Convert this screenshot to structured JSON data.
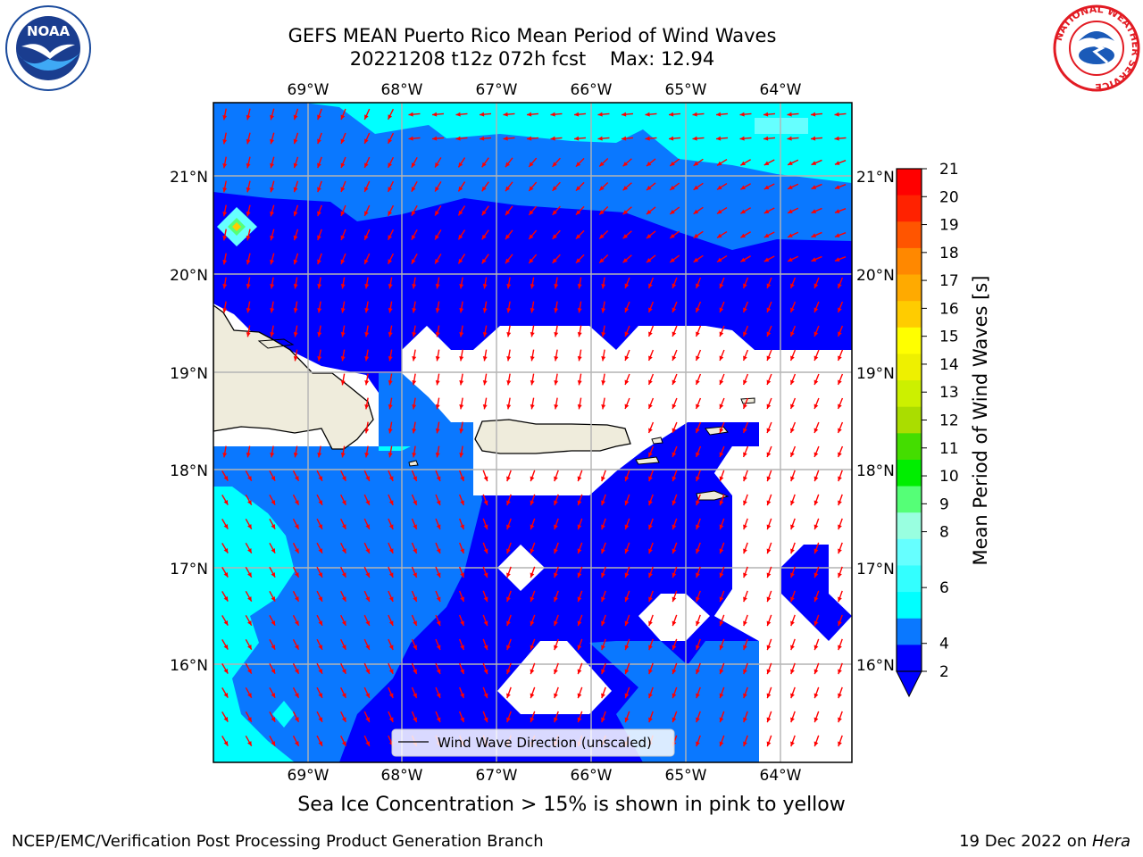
{
  "title": {
    "line1": "GEFS MEAN Puerto Rico Mean Period of Wind Waves",
    "line2": "20221208 t12z 072h fcst    Max: 12.94"
  },
  "map": {
    "lon_labels": [
      "69°W",
      "68°W",
      "67°W",
      "66°W",
      "65°W",
      "64°W"
    ],
    "lat_labels": [
      "21°N",
      "20°N",
      "19°N",
      "18°N",
      "17°N",
      "16°N"
    ],
    "legend_label": "Wind Wave Direction (unscaled)",
    "arrow_color": "#ff0000",
    "land_color": "#efecdc",
    "grid_color": "#b4b4b4"
  },
  "colorbar": {
    "label": "Mean Period of Wind Waves [s]",
    "ticks": [
      "2",
      "4",
      "6",
      "8",
      "9",
      "10",
      "11",
      "12",
      "13",
      "14",
      "15",
      "16",
      "17",
      "18",
      "19",
      "20",
      "21"
    ],
    "colors": [
      "#0000ff",
      "#0a78ff",
      "#00ffff",
      "#33ffff",
      "#66ffff",
      "#99ffe0",
      "#55ff77",
      "#00ee00",
      "#44dd00",
      "#aadd00",
      "#ccf000",
      "#eef000",
      "#ffff00",
      "#ffcc00",
      "#ffaa00",
      "#ff8800",
      "#ff5500",
      "#ff2200",
      "#ff0000"
    ],
    "extend_color": "#0000ff"
  },
  "notes": {
    "sea_ice": "Sea Ice Concentration > 15% is shown in pink to yellow"
  },
  "footer": {
    "left": "NCEP/EMC/Verification Post Processing Product Generation Branch",
    "date": "19 Dec 2022 on ",
    "machine": "Hera"
  },
  "logos": {
    "noaa": "NOAA",
    "nws": "NATIONAL WEATHER SERVICE"
  }
}
